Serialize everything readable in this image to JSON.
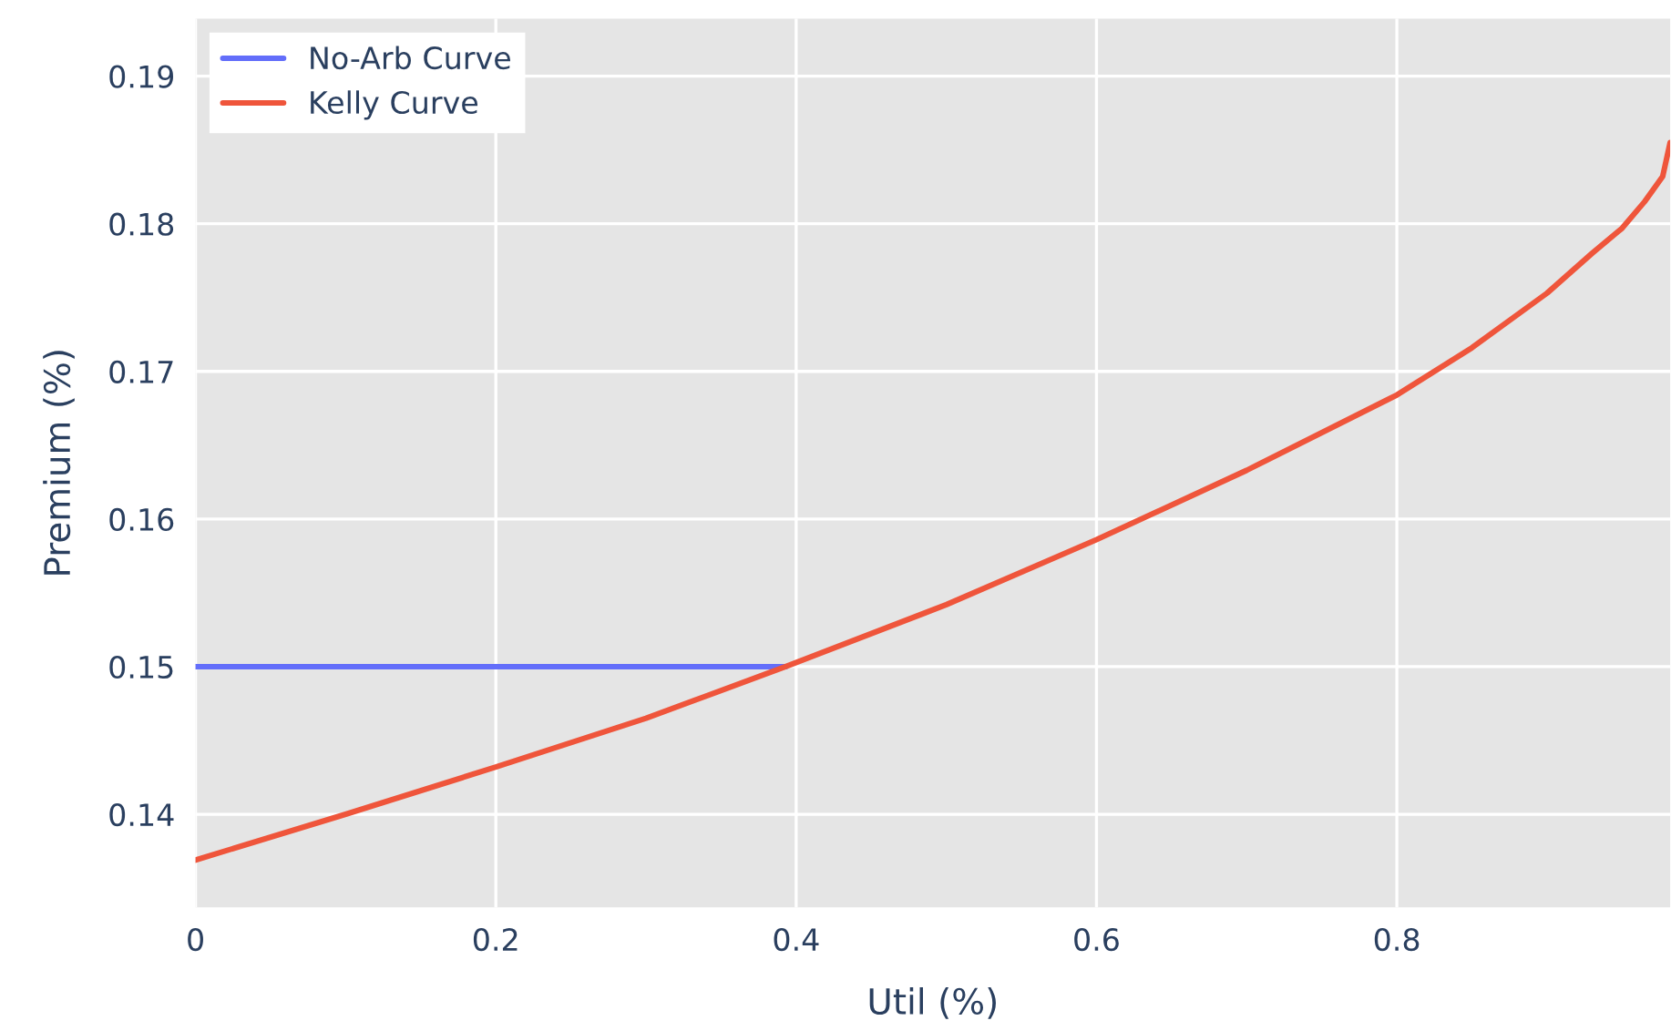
{
  "chart_data": {
    "type": "line",
    "xlabel": "Util (%)",
    "ylabel": "Premium (%)",
    "series": [
      {
        "name": "No-Arb Curve",
        "color": "#636efa",
        "x": [
          0,
          0.1,
          0.2,
          0.3,
          0.393
        ],
        "values": [
          0.15,
          0.15,
          0.15,
          0.15,
          0.15
        ]
      },
      {
        "name": "Kelly Curve",
        "color": "#ef553b",
        "x": [
          0,
          0.1,
          0.2,
          0.3,
          0.393,
          0.5,
          0.6,
          0.7,
          0.8,
          0.85,
          0.9,
          0.93,
          0.95,
          0.965,
          0.977,
          0.982
        ],
        "values": [
          0.1369,
          0.14,
          0.1432,
          0.1465,
          0.15,
          0.1542,
          0.1586,
          0.1633,
          0.1684,
          0.1716,
          0.1753,
          0.178,
          0.1797,
          0.1815,
          0.1832,
          0.1855
        ]
      }
    ],
    "xlim": [
      0,
      0.982
    ],
    "ylim": [
      0.1337,
      0.1939
    ],
    "xticks": [
      {
        "value": 0,
        "label": "0"
      },
      0.2,
      0.4,
      0.6,
      0.8
    ],
    "yticks": [
      0.14,
      0.15,
      0.16,
      0.17,
      0.18,
      0.19
    ],
    "grid": true,
    "legend": "top left",
    "marker": "none",
    "line_style": "solid"
  }
}
